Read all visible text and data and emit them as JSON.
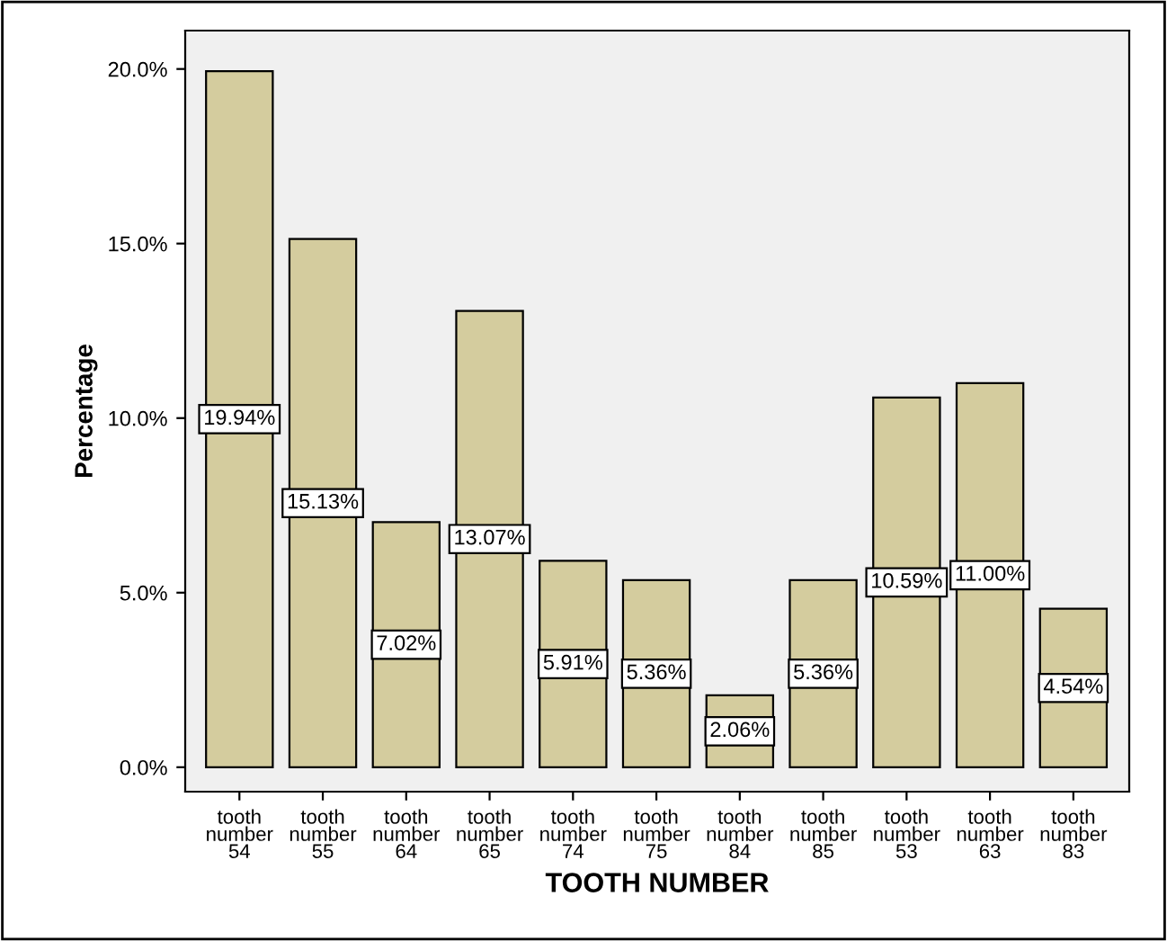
{
  "chart_data": {
    "type": "bar",
    "xlabel": "TOOTH NUMBER",
    "ylabel": "Percentage",
    "categories": [
      "tooth\nnumber\n54",
      "tooth\nnumber\n55",
      "tooth\nnumber\n64",
      "tooth\nnumber\n65",
      "tooth\nnumber\n74",
      "tooth\nnumber\n75",
      "tooth\nnumber\n84",
      "tooth\nnumber\n85",
      "tooth\nnumber\n53",
      "tooth\nnumber\n63",
      "tooth\nnumber\n83"
    ],
    "values": [
      19.94,
      15.13,
      7.02,
      13.07,
      5.91,
      5.36,
      2.06,
      5.36,
      10.59,
      11.0,
      4.54
    ],
    "value_labels": [
      "19.94%",
      "15.13%",
      "7.02%",
      "13.07%",
      "5.91%",
      "5.36%",
      "2.06%",
      "5.36%",
      "10.59%",
      "11.00%",
      "4.54%"
    ],
    "color": "#d4cc9e",
    "ylim": [
      -0.7,
      21.1
    ],
    "yticks": [
      {
        "value": 0,
        "label": "0.0%"
      },
      {
        "value": 5,
        "label": "5.0%"
      },
      {
        "value": 10,
        "label": "10.0%"
      },
      {
        "value": 15,
        "label": "15.0%"
      },
      {
        "value": 20,
        "label": "20.0%"
      }
    ],
    "grid": false
  }
}
